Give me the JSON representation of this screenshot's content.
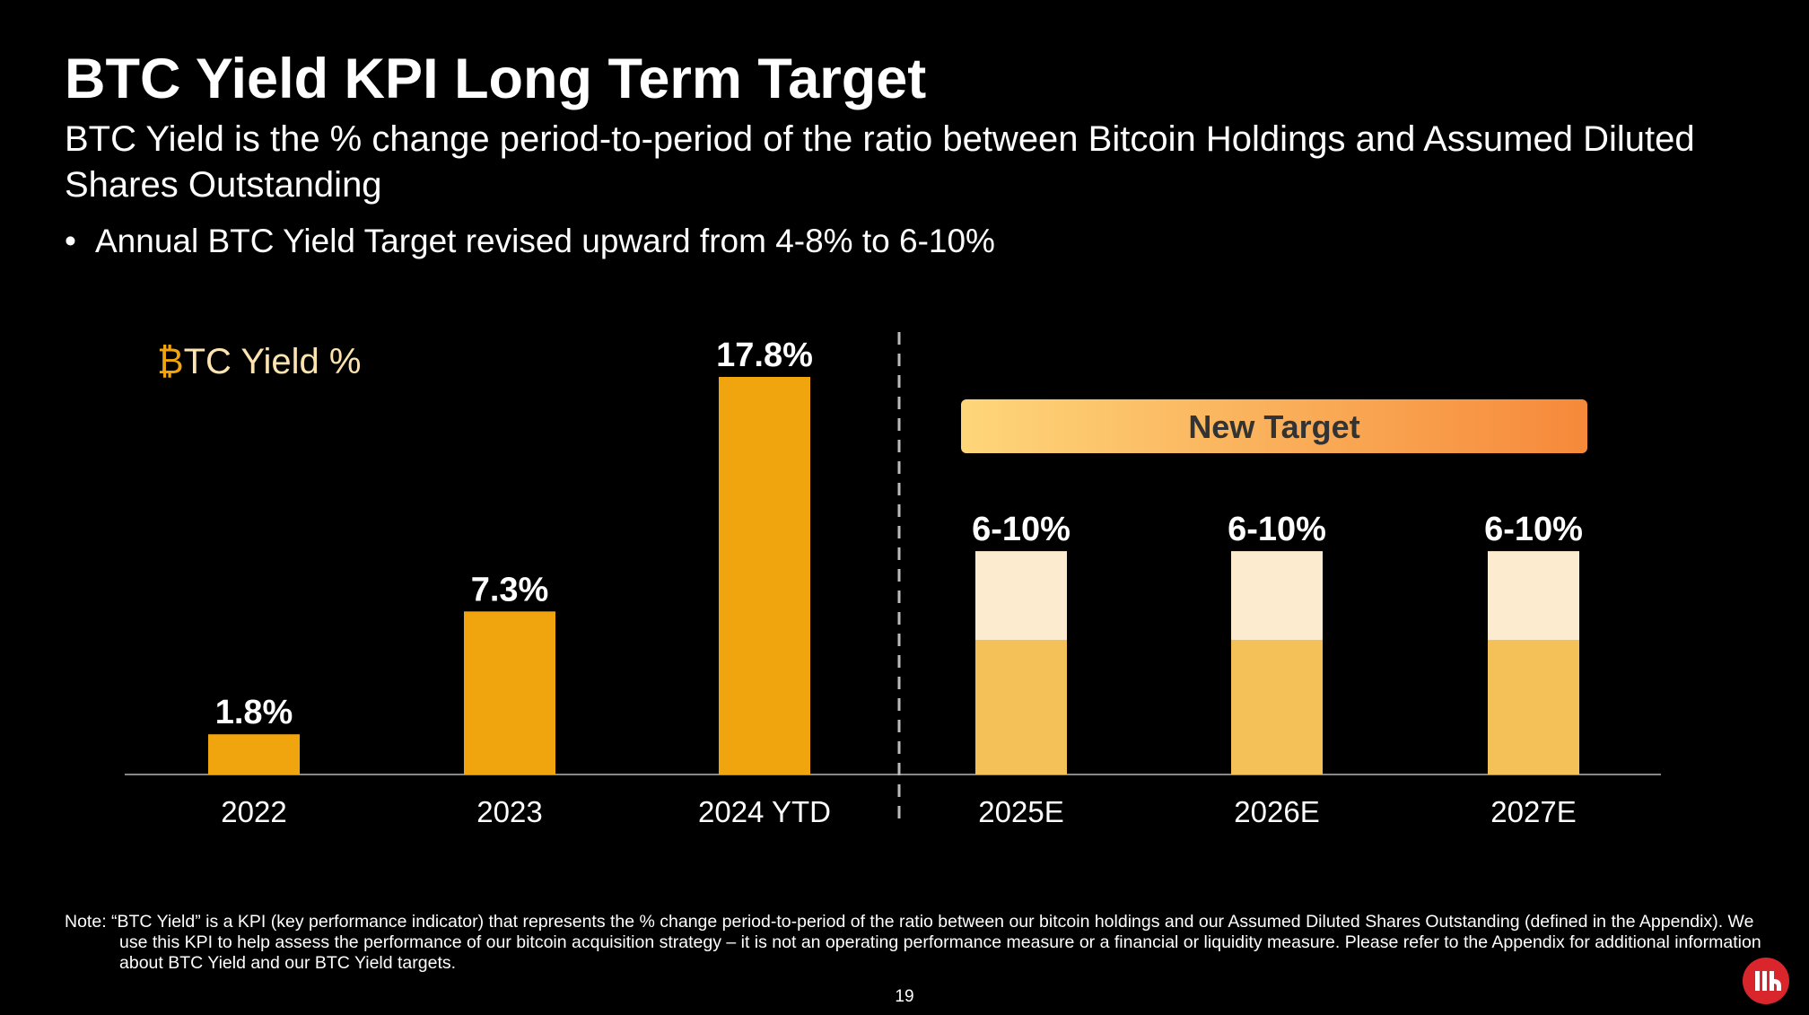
{
  "slide": {
    "title": "BTC Yield KPI Long Term Target",
    "subtitle": "BTC Yield is the % change period-to-period of the ratio between Bitcoin Holdings and Assumed Diluted Shares Outstanding",
    "bullet_symbol": "•",
    "bullet": "Annual BTC Yield Target revised upward from 4-8% to 6-10%",
    "note": "Note: “BTC Yield” is a KPI (key performance indicator) that represents the % change period-to-period of the ratio between our bitcoin holdings and our Assumed Diluted Shares Outstanding (defined in the Appendix). We use this KPI to help assess the performance of our bitcoin acquisition strategy – it is not an operating performance measure or a financial or liquidity measure. Please refer to the Appendix for additional information about BTC Yield and our BTC Yield targets.",
    "page_number": "19",
    "logo_icon": "strategy-logo-icon"
  },
  "chart_data": {
    "type": "bar",
    "title_symbol": "₿",
    "title": "TC Yield %",
    "categories": [
      "2022",
      "2023",
      "2024 YTD",
      "2025E",
      "2026E",
      "2027E"
    ],
    "actual": [
      {
        "category": "2022",
        "value": 1.8,
        "label": "1.8%"
      },
      {
        "category": "2023",
        "value": 7.3,
        "label": "7.3%"
      },
      {
        "category": "2024 YTD",
        "value": 17.8,
        "label": "17.8%"
      }
    ],
    "targets": [
      {
        "category": "2025E",
        "low": 6,
        "high": 10,
        "label": "6-10%"
      },
      {
        "category": "2026E",
        "low": 6,
        "high": 10,
        "label": "6-10%"
      },
      {
        "category": "2027E",
        "low": 6,
        "high": 10,
        "label": "6-10%"
      }
    ],
    "target_banner": "New Target",
    "ylim": [
      0,
      17.8
    ],
    "grid": false,
    "colors": {
      "actual": "#F0A50F",
      "target_low": "#F4C158",
      "target_high": "#FCEBCF",
      "banner_start": "#FED67A",
      "banner_end": "#F6893A",
      "title": "#FCE3B0",
      "btc_symbol": "#F0A50F"
    }
  }
}
